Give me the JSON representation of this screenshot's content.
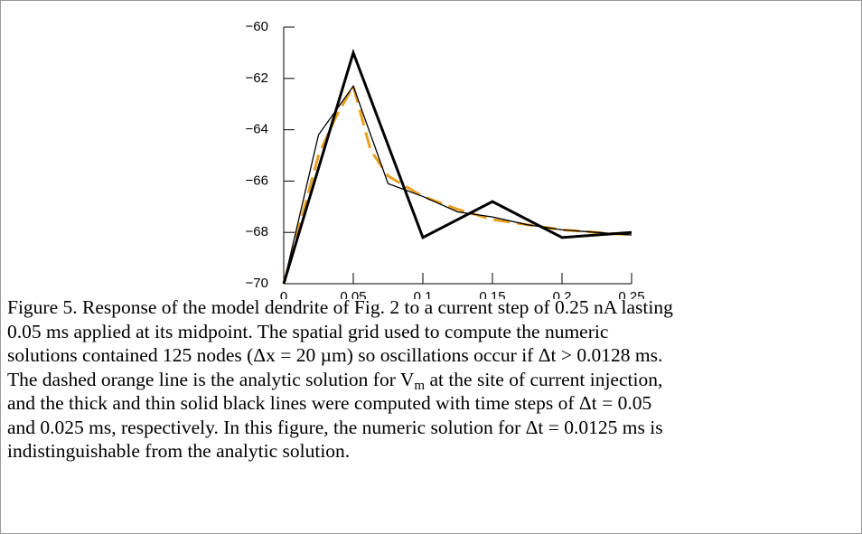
{
  "chart_data": {
    "type": "line",
    "xlim": [
      0,
      0.25
    ],
    "xticks": [
      0,
      0.05,
      0.1,
      0.15,
      0.2,
      0.25
    ],
    "ylim": [
      -70,
      -60
    ],
    "yticks": [
      {
        "value": -60,
        "label": "−60"
      },
      {
        "value": -62,
        "label": "−62"
      },
      {
        "value": -64,
        "label": "−64"
      },
      {
        "value": -66,
        "label": "−66"
      },
      {
        "value": -68,
        "label": "−68"
      },
      {
        "value": -70,
        "label": "−70"
      }
    ],
    "series": [
      {
        "color": "#e8a020",
        "style": "dashed",
        "width": 3,
        "x": [
          0,
          0.0125,
          0.025,
          0.0375,
          0.05,
          0.0625,
          0.075,
          0.1,
          0.125,
          0.15,
          0.175,
          0.2,
          0.225,
          0.25
        ],
        "values": [
          -70,
          -67.5,
          -65,
          -63.5,
          -62.3,
          -64.8,
          -65.8,
          -66.6,
          -67.1,
          -67.5,
          -67.7,
          -67.9,
          -68.0,
          -68.1
        ]
      },
      {
        "color": "#000000",
        "style": "solid",
        "width": 1.3,
        "x": [
          0,
          0.025,
          0.05,
          0.075,
          0.1,
          0.125,
          0.15,
          0.175,
          0.2,
          0.225,
          0.25
        ],
        "values": [
          -70,
          -64.2,
          -62.3,
          -66.1,
          -66.6,
          -67.2,
          -67.4,
          -67.7,
          -67.9,
          -68.0,
          -68.1
        ]
      },
      {
        "color": "#000000",
        "style": "solid",
        "width": 3,
        "x": [
          0,
          0.05,
          0.1,
          0.15,
          0.2,
          0.25
        ],
        "values": [
          -70,
          -61.0,
          -68.2,
          -66.8,
          -68.2,
          -68.0
        ]
      }
    ]
  },
  "caption": [
    {
      "text": "Figure 5. Response of the model dendrite of Fig. 2 to a current step of 0.25 nA lasting"
    },
    {
      "text": "0.05 ms applied at its midpoint. The spatial grid used to compute the numeric"
    },
    {
      "text": "solutions contained 125 nodes (Δx = 20 µm) so oscillations occur if Δt > 0.0128 ms."
    },
    {
      "text": "The dashed orange line is the analytic solution for V",
      "sub": "m",
      "after": " at the site of current injection,"
    },
    {
      "text": "and the thick and thin solid black lines were computed with time steps of Δt = 0.05"
    },
    {
      "text": "and 0.025 ms, respectively. In this figure, the numeric solution for Δt = 0.0125 ms is"
    },
    {
      "text": "indistinguishable from the analytic solution."
    }
  ]
}
